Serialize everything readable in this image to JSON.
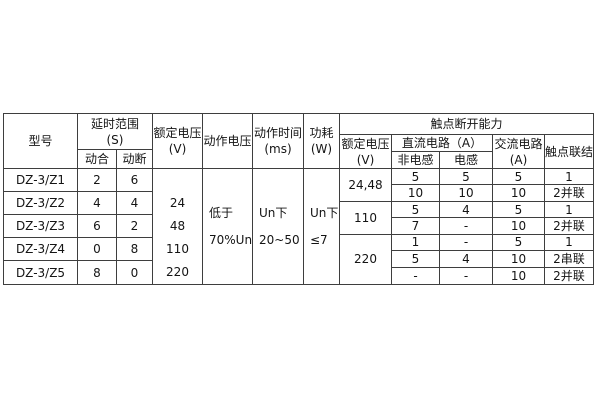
{
  "table": {
    "header": {
      "model": "型号",
      "delay_range_line1": "延时范围",
      "delay_range_line2": "(S)",
      "delay_close": "动合",
      "delay_open": "动断",
      "rated_voltage_line1": "额定电压",
      "rated_voltage_line2": "(V)",
      "operate_voltage": "动作电压",
      "operate_time_line1": "动作时间",
      "operate_time_line2": "(ms)",
      "power_line1": "功耗",
      "power_line2": "(W)",
      "contact_breaking_capacity": "触点断开能力",
      "rated_voltage2_line1": "额定电压",
      "rated_voltage2_line2": "(V)",
      "dc_circuit": "直流电路（A）",
      "non_inductive": "非电感",
      "inductive": "电感",
      "ac_circuit_line1": "交流电路",
      "ac_circuit_line2": "(A)",
      "contact_connection": "触点联结"
    },
    "models": [
      {
        "model": "DZ-3/Z1",
        "close_delay": "2",
        "open_delay": "6"
      },
      {
        "model": "DZ-3/Z2",
        "close_delay": "4",
        "open_delay": "4"
      },
      {
        "model": "DZ-3/Z3",
        "close_delay": "6",
        "open_delay": "2"
      },
      {
        "model": "DZ-3/Z4",
        "close_delay": "0",
        "open_delay": "8"
      },
      {
        "model": "DZ-3/Z5",
        "close_delay": "8",
        "open_delay": "0"
      }
    ],
    "rated_voltages": [
      "24",
      "48",
      "110",
      "220"
    ],
    "operate_voltage_lines": [
      "低于",
      "70%Un"
    ],
    "operate_time_lines": [
      "Un下",
      "20~50"
    ],
    "power_lines": [
      "Un下",
      "≤7"
    ],
    "breaking": [
      {
        "voltage": "24,48",
        "rows": [
          [
            "5",
            "5",
            "5",
            "1"
          ],
          [
            "10",
            "10",
            "10",
            "2并联"
          ]
        ]
      },
      {
        "voltage": "110",
        "rows": [
          [
            "5",
            "4",
            "5",
            "1"
          ],
          [
            "7",
            "-",
            "10",
            "2并联"
          ]
        ]
      },
      {
        "voltage": "220",
        "rows": [
          [
            "1",
            "-",
            "5",
            "1"
          ],
          [
            "5",
            "4",
            "10",
            "2串联"
          ],
          [
            "-",
            "-",
            "10",
            "2并联"
          ]
        ]
      }
    ]
  },
  "colors": {
    "border": "#3e3e3e",
    "text": "#141414",
    "background": "#ffffff"
  }
}
